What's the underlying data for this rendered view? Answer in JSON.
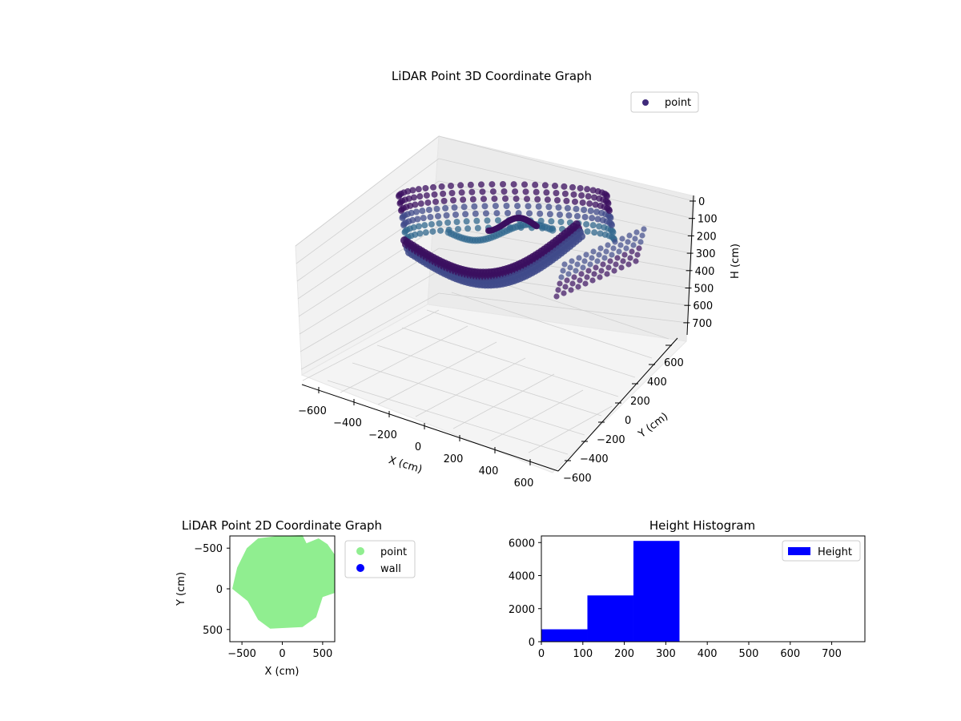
{
  "colors": {
    "point3d_dark": "#3b0f5f",
    "point3d_mid": "#3f4a8a",
    "point3d_light": "#31688e",
    "point2d": "#90ee90",
    "wall": "#0000ff",
    "histogram": "#0000ff",
    "pane": "#f2f2f2",
    "grid": "#d0d0d0"
  },
  "chart_data": [
    {
      "type": "scatter",
      "projection": "3d",
      "title": "LiDAR Point 3D Coordinate Graph",
      "xlabel": "X (cm)",
      "ylabel": "Y (cm)",
      "zlabel": "H (cm)",
      "xlim": [
        -650,
        650
      ],
      "ylim": [
        -650,
        650
      ],
      "zlim": [
        750,
        0
      ],
      "x_ticks": [
        "−600",
        "−400",
        "−200",
        "0",
        "200",
        "400",
        "600"
      ],
      "y_ticks": [
        "−600",
        "−400",
        "−200",
        "0",
        "200",
        "400",
        "600"
      ],
      "z_ticks": [
        "0",
        "100",
        "200",
        "300",
        "400",
        "500",
        "600",
        "700"
      ],
      "legend": {
        "entries": [
          "point"
        ],
        "loc": "upper-right"
      },
      "grid": true,
      "series": [
        {
          "name": "point",
          "color": "#3b0f5f"
        }
      ]
    },
    {
      "type": "scatter",
      "title": "LiDAR Point 2D Coordinate Graph",
      "xlabel": "X (cm)",
      "ylabel": "Y (cm)",
      "xlim": [
        -650,
        650
      ],
      "ylim": [
        -650,
        650
      ],
      "x_ticks": [
        "−500",
        "0",
        "500"
      ],
      "y_ticks": [
        "−500",
        "0",
        "500"
      ],
      "legend": {
        "entries": [
          "point",
          "wall"
        ],
        "loc": "outside-right"
      },
      "grid": false,
      "series": [
        {
          "name": "point",
          "color": "#90ee90"
        },
        {
          "name": "wall",
          "color": "#0000ff"
        }
      ]
    },
    {
      "type": "bar",
      "subtype": "histogram",
      "title": "Height Histogram",
      "xlabel": "",
      "ylabel": "",
      "xlim": [
        0,
        780
      ],
      "ylim": [
        0,
        6400
      ],
      "x_ticks": [
        "0",
        "100",
        "200",
        "300",
        "400",
        "500",
        "600",
        "700"
      ],
      "y_ticks": [
        "0",
        "2000",
        "4000",
        "6000"
      ],
      "legend": {
        "entries": [
          "Height"
        ],
        "loc": "upper-right"
      },
      "grid": false,
      "bins": [
        {
          "start": 0,
          "end": 111,
          "count": 750
        },
        {
          "start": 111,
          "end": 222,
          "count": 2800
        },
        {
          "start": 222,
          "end": 333,
          "count": 6100
        },
        {
          "start": 333,
          "end": 444,
          "count": 0
        },
        {
          "start": 444,
          "end": 555,
          "count": 0
        },
        {
          "start": 555,
          "end": 666,
          "count": 0
        },
        {
          "start": 666,
          "end": 777,
          "count": 0
        }
      ],
      "series": [
        {
          "name": "Height",
          "color": "#0000ff"
        }
      ]
    }
  ]
}
